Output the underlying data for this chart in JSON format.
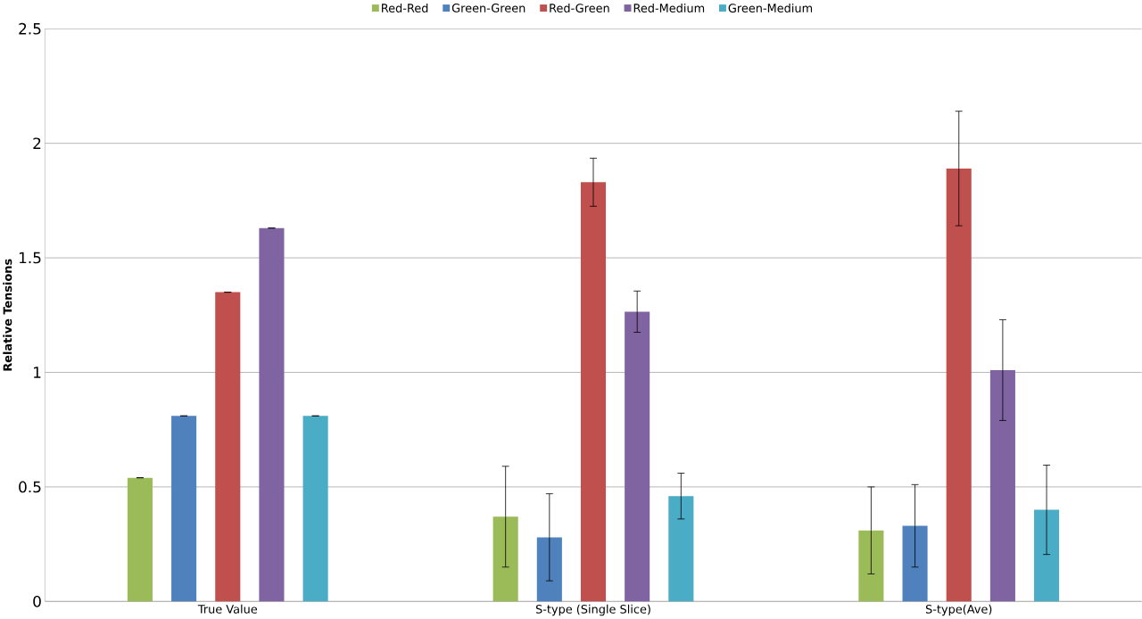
{
  "chart_data": {
    "type": "bar",
    "ylabel": "Relative Tensions",
    "categories": [
      "True Value",
      "S-type (Single Slice)",
      "S-type(Ave)"
    ],
    "ylim": [
      0,
      2.5
    ],
    "yticks": [
      0,
      0.5,
      1,
      1.5,
      2,
      2.5
    ],
    "grid": "y",
    "legend": "top",
    "series": [
      {
        "name": "Red-Red",
        "color": "#9bbb59",
        "values": [
          0.54,
          0.37,
          0.31
        ],
        "errors": [
          0,
          0.22,
          0.19
        ]
      },
      {
        "name": "Green-Green",
        "color": "#4f81bd",
        "values": [
          0.81,
          0.28,
          0.33
        ],
        "errors": [
          0,
          0.19,
          0.18
        ]
      },
      {
        "name": "Red-Green",
        "color": "#c0504d",
        "values": [
          1.35,
          1.83,
          1.89
        ],
        "errors": [
          0,
          0.105,
          0.25
        ]
      },
      {
        "name": "Red-Medium",
        "color": "#8064a2",
        "values": [
          1.63,
          1.265,
          1.01
        ],
        "errors": [
          0,
          0.09,
          0.22
        ]
      },
      {
        "name": "Green-Medium",
        "color": "#4bacc6",
        "values": [
          0.81,
          0.46,
          0.4
        ],
        "errors": [
          0,
          0.1,
          0.195
        ]
      }
    ]
  }
}
